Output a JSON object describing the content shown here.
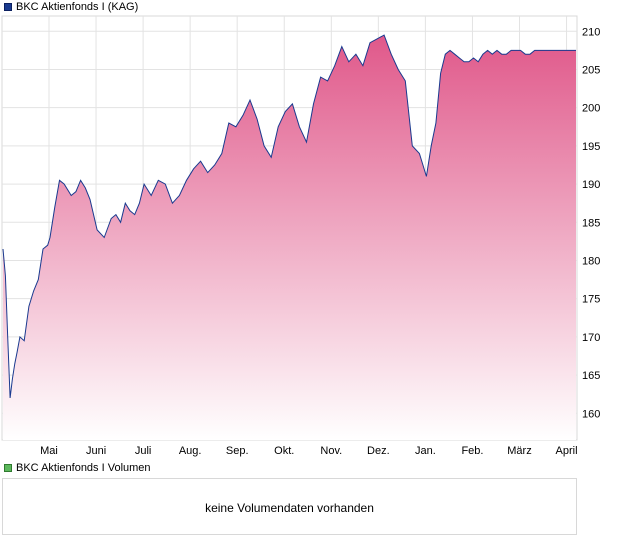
{
  "legend": {
    "price_series": "BKC Aktienfonds I (KAG)",
    "price_color": "#1a3a8f",
    "volume_series": "BKC Aktienfonds I Volumen",
    "volume_color": "#5cb85c"
  },
  "volume_panel": {
    "message": "keine Volumendaten vorhanden"
  },
  "chart_data": {
    "type": "area",
    "series": [
      {
        "name": "BKC Aktienfonds I (KAG)",
        "color": "#1a3a8f",
        "fill_top": "#e0588a",
        "fill_bottom": "#ffffff",
        "x": [
          0.0,
          0.05,
          0.1,
          0.15,
          0.2,
          0.25,
          0.3,
          0.36,
          0.45,
          0.55,
          0.65,
          0.75,
          0.85,
          0.95,
          1.0,
          1.1,
          1.2,
          1.3,
          1.45,
          1.55,
          1.65,
          1.75,
          1.85,
          2.0,
          2.15,
          2.3,
          2.4,
          2.5,
          2.6,
          2.7,
          2.8,
          2.9,
          3.0,
          3.15,
          3.3,
          3.45,
          3.6,
          3.75,
          3.9,
          4.05,
          4.2,
          4.35,
          4.5,
          4.65,
          4.8,
          4.95,
          5.1,
          5.25,
          5.4,
          5.55,
          5.7,
          5.85,
          6.0,
          6.15,
          6.3,
          6.45,
          6.6,
          6.75,
          6.9,
          7.05,
          7.2,
          7.35,
          7.5,
          7.65,
          7.8,
          7.95,
          8.1,
          8.25,
          8.4,
          8.55,
          8.7,
          8.85,
          9.0,
          9.1,
          9.2,
          9.3,
          9.4,
          9.5,
          9.6,
          9.7,
          9.8,
          9.9,
          10.0,
          10.1,
          10.2,
          10.3,
          10.4,
          10.5,
          10.6,
          10.7,
          10.8,
          10.9,
          11.0,
          11.1,
          11.2,
          11.3,
          11.5,
          11.6,
          11.7,
          11.8,
          11.9,
          12.0,
          12.1,
          12.2,
          12.3
        ],
        "values": [
          181.5,
          178.0,
          170.0,
          162.0,
          164.5,
          166.5,
          168.0,
          170.0,
          169.5,
          174.0,
          176.0,
          177.5,
          181.5,
          182.0,
          183.0,
          187.0,
          190.5,
          190.0,
          188.5,
          189.0,
          190.5,
          189.5,
          188.0,
          184.0,
          183.0,
          185.5,
          186.0,
          185.0,
          187.5,
          186.5,
          186.0,
          187.5,
          190.0,
          188.5,
          190.5,
          190.0,
          187.5,
          188.5,
          190.5,
          192.0,
          193.0,
          191.5,
          192.5,
          194.0,
          198.0,
          197.5,
          199.0,
          201.0,
          198.5,
          195.0,
          193.5,
          197.5,
          199.5,
          200.5,
          197.5,
          195.5,
          200.5,
          204.0,
          203.5,
          205.5,
          208.0,
          206.0,
          207.0,
          205.5,
          208.5,
          209.0,
          209.5,
          207.0,
          205.0,
          203.5,
          195.0,
          194.0,
          191.0,
          195.0,
          198.0,
          204.5,
          207.0,
          207.5,
          207.0,
          206.5,
          206.0,
          206.0,
          206.5,
          206.0,
          207.0,
          207.5,
          207.0,
          207.5,
          207.0,
          207.0,
          207.5,
          207.5,
          207.5,
          207.0,
          207.0,
          207.5,
          207.5,
          207.5,
          207.5,
          207.5,
          207.5,
          207.5,
          207.5,
          207.5,
          207.5
        ]
      }
    ],
    "x_ticks": [
      "Mai",
      "Juni",
      "Juli",
      "Aug.",
      "Sep.",
      "Okt.",
      "Nov.",
      "Dez.",
      "Jan.",
      "Feb.",
      "März",
      "April"
    ],
    "y_ticks": [
      160,
      165,
      170,
      175,
      180,
      185,
      190,
      195,
      200,
      205,
      210
    ],
    "ylim": [
      156.5,
      212
    ],
    "y_axis_side": "right",
    "grid": true
  }
}
